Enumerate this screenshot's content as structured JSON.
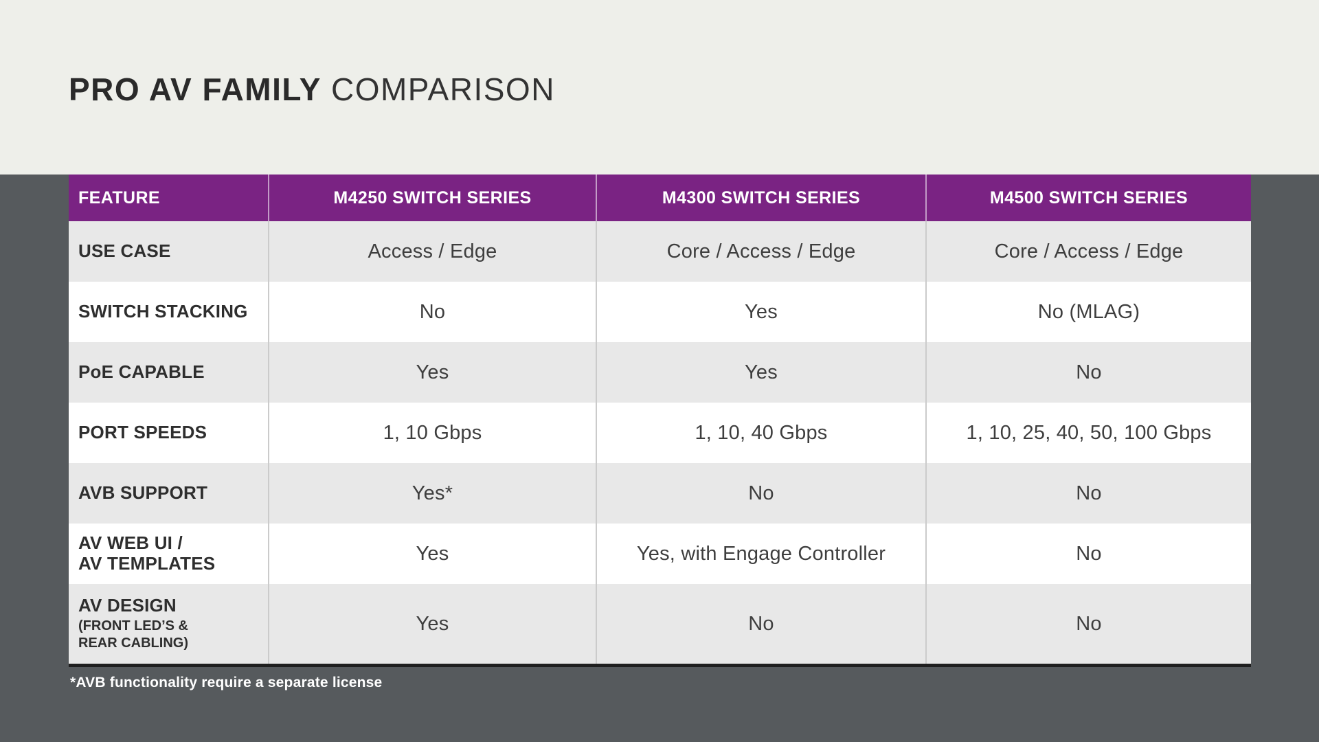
{
  "slide": {
    "title_primary": "PRO AV FAMILY",
    "title_secondary": "COMPARISON",
    "footnote": "*AVB functionality require a separate license"
  },
  "chart_data": {
    "type": "table",
    "title": "PRO AV FAMILY COMPARISON",
    "columns": [
      "FEATURE",
      "M4250 SWITCH SERIES",
      "M4300 SWITCH SERIES",
      "M4500 SWITCH SERIES"
    ],
    "rows": [
      {
        "feature": "USE CASE",
        "feature_sub": "",
        "values": [
          "Access / Edge",
          "Core / Access / Edge",
          "Core / Access / Edge"
        ]
      },
      {
        "feature": "SWITCH STACKING",
        "feature_sub": "",
        "values": [
          "No",
          "Yes",
          "No (MLAG)"
        ]
      },
      {
        "feature": "PoE CAPABLE",
        "feature_sub": "",
        "values": [
          "Yes",
          "Yes",
          "No"
        ]
      },
      {
        "feature": "PORT SPEEDS",
        "feature_sub": "",
        "values": [
          "1, 10 Gbps",
          "1, 10, 40 Gbps",
          "1, 10, 25, 40, 50, 100 Gbps"
        ]
      },
      {
        "feature": "AVB SUPPORT",
        "feature_sub": "",
        "values": [
          "Yes*",
          "No",
          "No"
        ]
      },
      {
        "feature": "AV WEB UI /\nAV TEMPLATES",
        "feature_sub": "",
        "values": [
          "Yes",
          "Yes, with Engage Controller",
          "No"
        ]
      },
      {
        "feature": "AV DESIGN",
        "feature_sub": "(FRONT LED’S &\nREAR CABLING)",
        "values": [
          "Yes",
          "No",
          "No"
        ]
      }
    ],
    "legend_position": "none",
    "grid": "row-striping"
  },
  "colors": {
    "header_purple": "#7A2383",
    "band_offwhite": "#EEEFEA",
    "page_dark": "#565A5D",
    "row_gray": "#E8E8E8",
    "row_white": "#FFFFFF",
    "table_bottom_border": "#1F1F1F",
    "header_text": "#FFFFFF",
    "body_text": "#3E3E3E",
    "title_text": "#2A2A2A"
  }
}
